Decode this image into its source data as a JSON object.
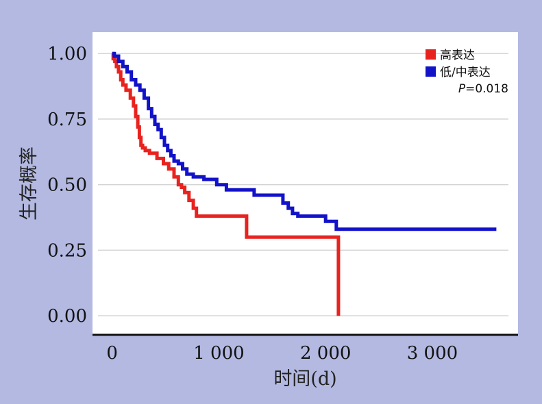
{
  "chart_data": {
    "type": "line",
    "step": true,
    "xlabel": "时间(d)",
    "ylabel": "生存概率",
    "xlim": [
      -120,
      3700
    ],
    "ylim": [
      -0.01,
      1.05
    ],
    "x_ticks": [
      0,
      1000,
      2000,
      3000
    ],
    "x_tick_labels": [
      "0",
      "1 000",
      "2 000",
      "3 000"
    ],
    "y_ticks": [
      0.0,
      0.25,
      0.5,
      0.75,
      1.0
    ],
    "y_tick_labels": [
      "0.00",
      "0.25",
      "0.50",
      "0.75",
      "1.00"
    ],
    "grid": "horizontal",
    "legend_position": "top-right",
    "annotation": {
      "italic": "P",
      "text": "=0.018"
    },
    "series": [
      {
        "name": "高表达",
        "color": "#e8231f",
        "x": [
          0,
          10,
          25,
          40,
          60,
          80,
          100,
          130,
          170,
          200,
          220,
          240,
          255,
          270,
          285,
          310,
          350,
          420,
          480,
          530,
          580,
          620,
          650,
          680,
          720,
          760,
          790,
          1260,
          2120,
          2120
        ],
        "y": [
          1.0,
          0.98,
          0.97,
          0.95,
          0.93,
          0.9,
          0.88,
          0.86,
          0.83,
          0.8,
          0.76,
          0.72,
          0.68,
          0.65,
          0.64,
          0.63,
          0.62,
          0.6,
          0.58,
          0.56,
          0.53,
          0.5,
          0.49,
          0.47,
          0.44,
          0.41,
          0.38,
          0.3,
          0.3,
          0.0
        ]
      },
      {
        "name": "低/中表达",
        "color": "#1212c9",
        "x": [
          0,
          20,
          60,
          100,
          140,
          180,
          220,
          260,
          300,
          340,
          370,
          400,
          430,
          460,
          490,
          520,
          550,
          580,
          620,
          660,
          700,
          760,
          860,
          980,
          1070,
          1330,
          1600,
          1650,
          1690,
          1740,
          2000,
          2100,
          3600
        ],
        "y": [
          1.0,
          0.99,
          0.97,
          0.95,
          0.93,
          0.9,
          0.88,
          0.86,
          0.83,
          0.79,
          0.76,
          0.73,
          0.71,
          0.68,
          0.65,
          0.63,
          0.61,
          0.59,
          0.58,
          0.56,
          0.54,
          0.53,
          0.52,
          0.5,
          0.48,
          0.46,
          0.43,
          0.41,
          0.39,
          0.38,
          0.36,
          0.33,
          0.33
        ]
      }
    ]
  }
}
